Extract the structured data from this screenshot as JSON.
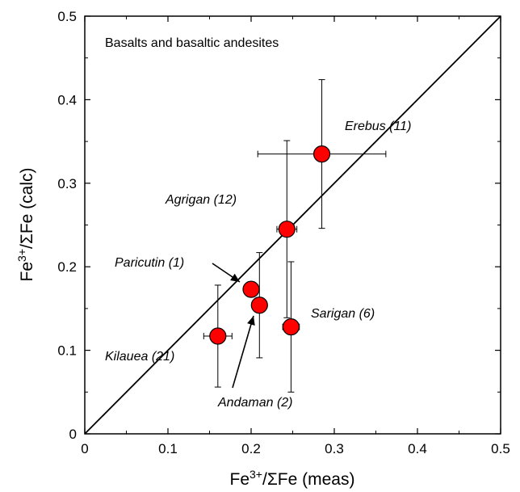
{
  "chart_data": {
    "type": "scatter",
    "annotation": "Basalts and basaltic andesites",
    "xlabel": {
      "main": "Fe",
      "sup": "3+",
      "rest": "/ΣFe (meas)"
    },
    "ylabel": {
      "main": "Fe",
      "sup": "3+",
      "rest": "/ΣFe (calc)"
    },
    "xlim": [
      0,
      0.5
    ],
    "ylim": [
      0,
      0.5
    ],
    "xticks": [
      "0",
      "0.1",
      "0.2",
      "0.3",
      "0.4",
      "0.5"
    ],
    "yticks": [
      "0",
      "0.1",
      "0.2",
      "0.3",
      "0.4",
      "0.5"
    ],
    "reference_line": {
      "from": [
        0,
        0
      ],
      "to": [
        0.5,
        0.5
      ]
    },
    "point_color": "#ff0000",
    "points": [
      {
        "label": "Kilauea (21)",
        "x": 0.16,
        "y": 0.117,
        "xerr": 0.017,
        "yerr": 0.061
      },
      {
        "label": "Paricutin (1)",
        "x": 0.2,
        "y": 0.173,
        "xerr": 0.005,
        "yerr": 0.0
      },
      {
        "label": "Andaman (2)",
        "x": 0.21,
        "y": 0.154,
        "xerr": 0.007,
        "yerr": 0.063
      },
      {
        "label": "Sarigan (6)",
        "x": 0.248,
        "y": 0.128,
        "xerr": 0.01,
        "yerr": 0.078
      },
      {
        "label": "Agrigan (12)",
        "x": 0.243,
        "y": 0.245,
        "xerr": 0.012,
        "yerr": 0.106
      },
      {
        "label": "Erebus (11)",
        "x": 0.285,
        "y": 0.335,
        "xerr": 0.077,
        "yerr": 0.089
      }
    ]
  }
}
